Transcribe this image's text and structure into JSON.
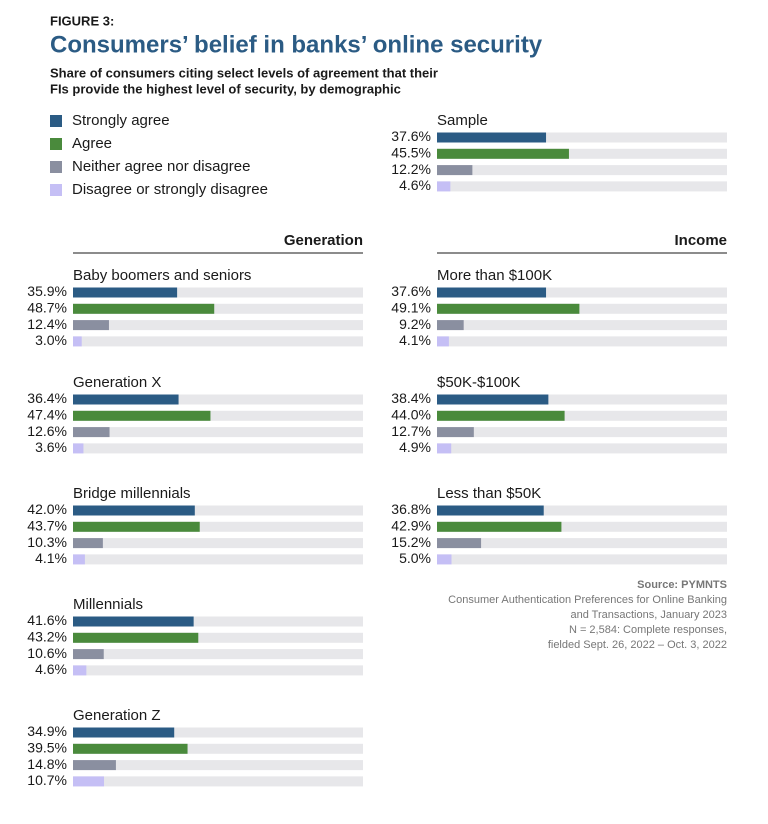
{
  "figure_label": "FIGURE 3:",
  "title": "Consumers’ belief in banks’ online security",
  "subtitle": [
    "Share of consumers citing select levels of agreement that their",
    "FIs provide the highest level of security, by demographic"
  ],
  "legend": [
    {
      "name": "Strongly agree",
      "color": "#2b5b84"
    },
    {
      "name": "Agree",
      "color": "#4a8a3c"
    },
    {
      "name": "Neither agree nor disagree",
      "color": "#8a8fa0"
    },
    {
      "name": "Disagree or strongly disagree",
      "color": "#c5bff5"
    }
  ],
  "column_headings": [
    "Generation",
    "Income"
  ],
  "chart_data": [
    {
      "type": "bar",
      "title": "Sample",
      "xlim": [
        0,
        100
      ],
      "values": [
        37.6,
        45.5,
        12.2,
        4.6
      ],
      "value_labels": [
        "37.6%",
        "45.5%",
        "12.2%",
        "4.6%"
      ]
    },
    {
      "type": "bar",
      "title": "Baby boomers and seniors",
      "xlim": [
        0,
        100
      ],
      "values": [
        35.9,
        48.7,
        12.4,
        3.0
      ],
      "value_labels": [
        "35.9%",
        "48.7%",
        "12.4%",
        "3.0%"
      ]
    },
    {
      "type": "bar",
      "title": "Generation X",
      "xlim": [
        0,
        100
      ],
      "values": [
        36.4,
        47.4,
        12.6,
        3.6
      ],
      "value_labels": [
        "36.4%",
        "47.4%",
        "12.6%",
        "3.6%"
      ]
    },
    {
      "type": "bar",
      "title": "Bridge millennials",
      "xlim": [
        0,
        100
      ],
      "values": [
        42.0,
        43.7,
        10.3,
        4.1
      ],
      "value_labels": [
        "42.0%",
        "43.7%",
        "10.3%",
        "4.1%"
      ]
    },
    {
      "type": "bar",
      "title": "Millennials",
      "xlim": [
        0,
        100
      ],
      "values": [
        41.6,
        43.2,
        10.6,
        4.6
      ],
      "value_labels": [
        "41.6%",
        "43.2%",
        "10.6%",
        "4.6%"
      ]
    },
    {
      "type": "bar",
      "title": "Generation Z",
      "xlim": [
        0,
        100
      ],
      "values": [
        34.9,
        39.5,
        14.8,
        10.7
      ],
      "value_labels": [
        "34.9%",
        "39.5%",
        "14.8%",
        "10.7%"
      ]
    },
    {
      "type": "bar",
      "title": "More than $100K",
      "xlim": [
        0,
        100
      ],
      "values": [
        37.6,
        49.1,
        9.2,
        4.1
      ],
      "value_labels": [
        "37.6%",
        "49.1%",
        "9.2%",
        "4.1%"
      ]
    },
    {
      "type": "bar",
      "title": "$50K-$100K",
      "xlim": [
        0,
        100
      ],
      "values": [
        38.4,
        44.0,
        12.7,
        4.9
      ],
      "value_labels": [
        "38.4%",
        "44.0%",
        "12.7%",
        "4.9%"
      ]
    },
    {
      "type": "bar",
      "title": "Less than $50K",
      "xlim": [
        0,
        100
      ],
      "values": [
        36.8,
        42.9,
        15.2,
        5.0
      ],
      "value_labels": [
        "36.8%",
        "42.9%",
        "15.2%",
        "5.0%"
      ]
    }
  ],
  "source": {
    "label": "Source: PYMNTS",
    "lines": [
      "Consumer Authentication Preferences for Online Banking",
      "and Transactions, January 2023",
      "N = 2,584: Complete responses,",
      "fielded Sept. 26, 2022 – Oct. 3, 2022"
    ]
  }
}
